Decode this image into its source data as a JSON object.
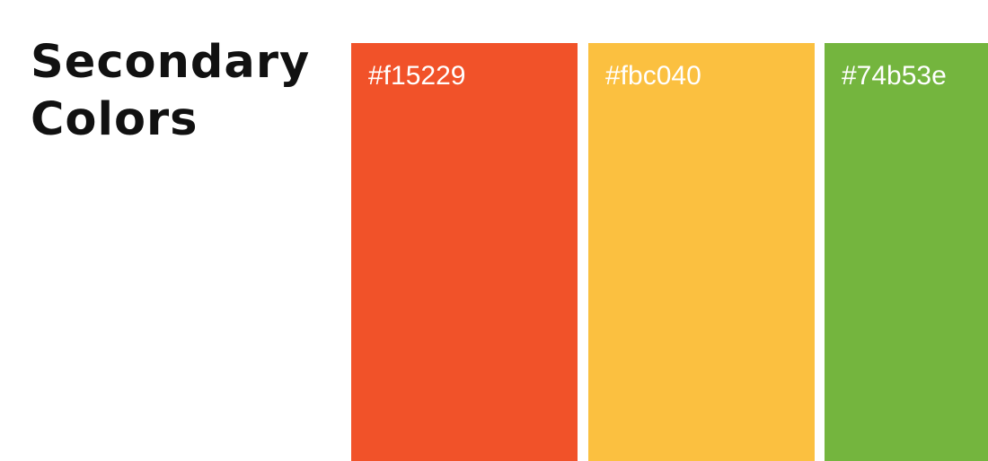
{
  "heading": {
    "line1": "Secondary",
    "line2": "Colors"
  },
  "swatches": [
    {
      "label": "#f15229",
      "color": "#f15229"
    },
    {
      "label": "#fbc040",
      "color": "#fbc040"
    },
    {
      "label": "#74b53e",
      "color": "#74b53e"
    }
  ]
}
